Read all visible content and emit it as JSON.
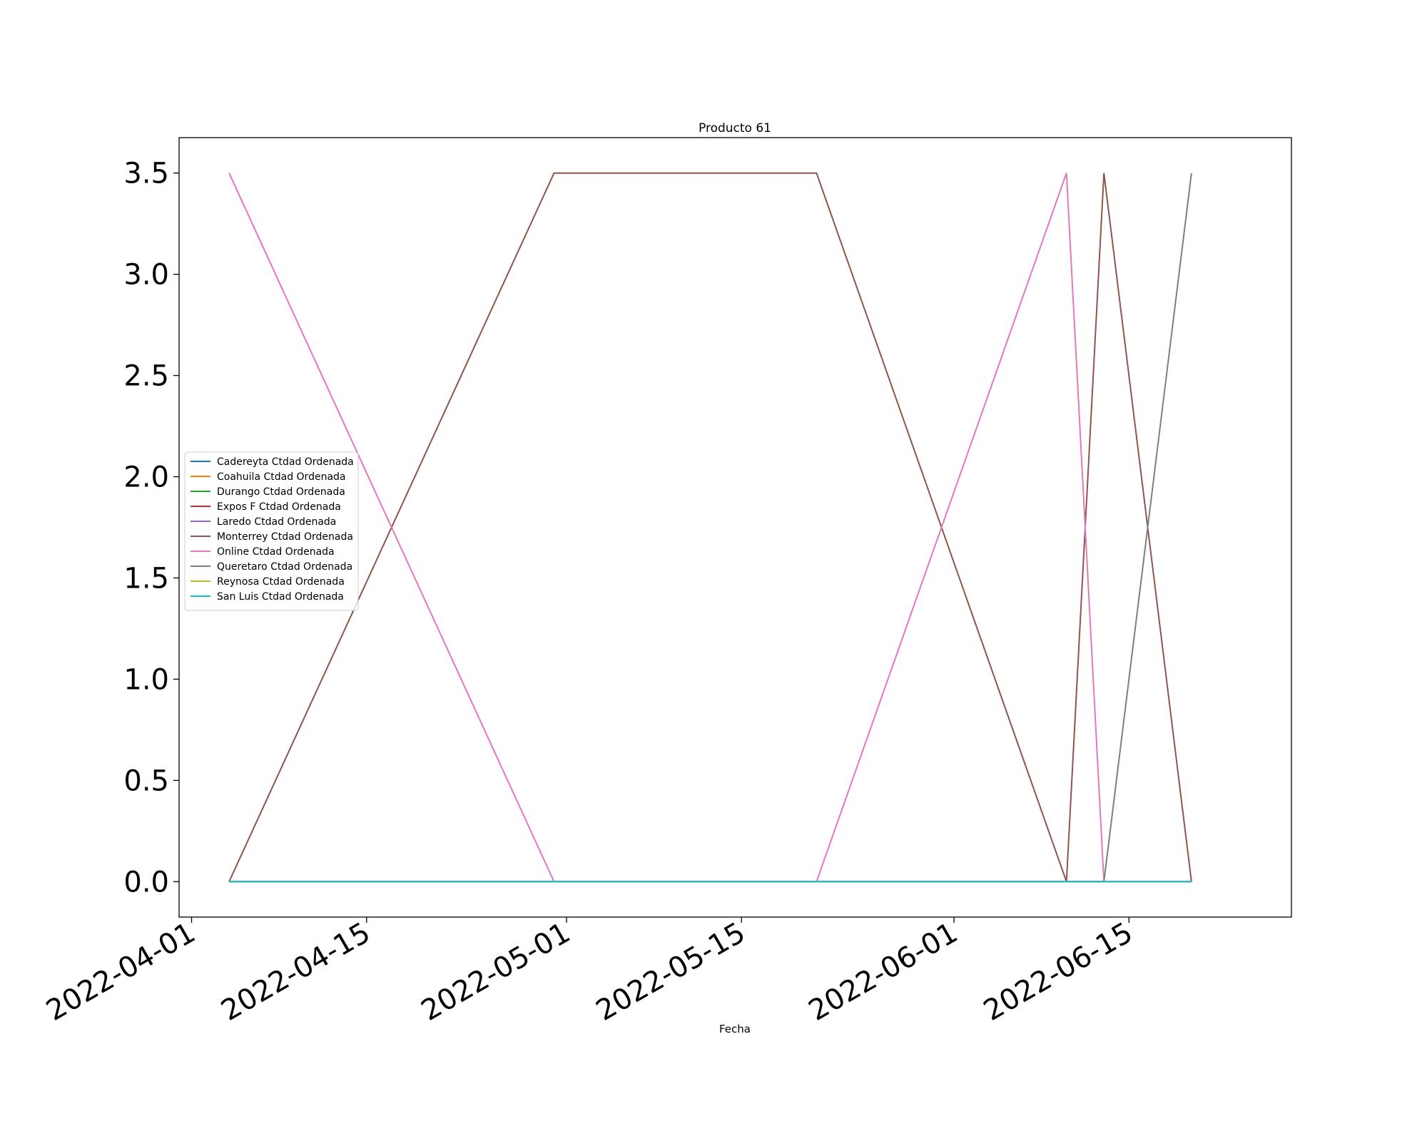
{
  "chart_data": {
    "type": "line",
    "title": "Producto 61",
    "xlabel": "Fecha",
    "ylabel": "",
    "x_type": "date",
    "xlim": [
      "2022-03-31",
      "2022-06-28"
    ],
    "ylim": [
      -0.175,
      3.675
    ],
    "x_ticks": [
      "2022-04-01",
      "2022-04-15",
      "2022-05-01",
      "2022-05-15",
      "2022-06-01",
      "2022-06-15"
    ],
    "y_ticks": [
      0.0,
      0.5,
      1.0,
      1.5,
      2.0,
      2.5,
      3.0,
      3.5
    ],
    "y_tick_labels": [
      "0.0",
      "0.5",
      "1.0",
      "1.5",
      "2.0",
      "2.5",
      "3.0",
      "3.5"
    ],
    "grid": false,
    "legend_position": "center-left",
    "x": [
      "2022-04-04",
      "2022-04-30",
      "2022-05-21",
      "2022-06-10",
      "2022-06-13",
      "2022-06-20"
    ],
    "series": [
      {
        "name": "Cadereyta Ctdad Ordenada",
        "color": "#1f77b4",
        "values": [
          0,
          0,
          0,
          0,
          0,
          0
        ]
      },
      {
        "name": "Coahuila Ctdad Ordenada",
        "color": "#ff7f0e",
        "values": [
          0,
          0,
          0,
          0,
          0,
          0
        ]
      },
      {
        "name": "Durango Ctdad Ordenada",
        "color": "#2ca02c",
        "values": [
          0,
          0,
          0,
          0,
          0,
          0
        ]
      },
      {
        "name": "Expos F Ctdad Ordenada",
        "color": "#d62728",
        "values": [
          0,
          0,
          0,
          0,
          0,
          0
        ]
      },
      {
        "name": "Laredo Ctdad Ordenada",
        "color": "#9467bd",
        "values": [
          0,
          0,
          0,
          0,
          0,
          0
        ]
      },
      {
        "name": "Monterrey Ctdad Ordenada",
        "color": "#8c564b",
        "values": [
          0,
          3.5,
          3.5,
          0,
          3.5,
          0
        ]
      },
      {
        "name": "Online Ctdad Ordenada",
        "color": "#e377c2",
        "values": [
          3.5,
          0,
          0,
          3.5,
          0,
          0
        ]
      },
      {
        "name": "Queretaro Ctdad Ordenada",
        "color": "#7f7f7f",
        "values": [
          0,
          0,
          0,
          0,
          0,
          3.5
        ]
      },
      {
        "name": "Reynosa Ctdad Ordenada",
        "color": "#bcbd22",
        "values": [
          0,
          0,
          0,
          0,
          0,
          0
        ]
      },
      {
        "name": "San Luis Ctdad Ordenada",
        "color": "#17becf",
        "values": [
          0,
          0,
          0,
          0,
          0,
          0
        ]
      }
    ]
  }
}
